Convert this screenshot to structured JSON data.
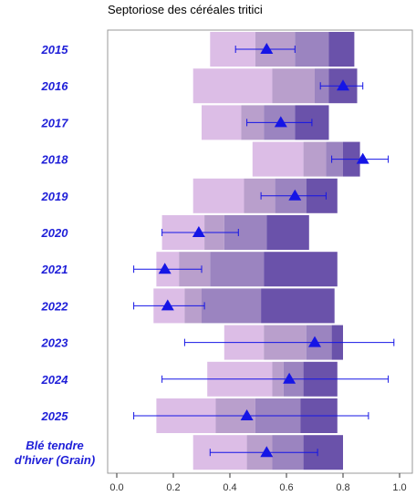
{
  "chart_data": {
    "type": "bar",
    "title": "Septoriose des céréales tritici",
    "xlim": [
      -0.03,
      1.04
    ],
    "xticks": [
      "0.0",
      "0.2",
      "0.4",
      "0.6",
      "0.8",
      "1.0"
    ],
    "categories": [
      "2015",
      "2016",
      "2017",
      "2018",
      "2019",
      "2020",
      "2021",
      "2022",
      "2023",
      "2024",
      "2025",
      "Blé tendre\nd'hiver (Grain)"
    ],
    "band_colors": [
      "#dcbde6",
      "#b99fcc",
      "#9b84c0",
      "#6a52aa"
    ],
    "marker_color": "#1515e6",
    "rows": [
      {
        "label": "2015",
        "bands": [
          0.33,
          0.49,
          0.63,
          0.75,
          0.84
        ],
        "point": 0.53,
        "err": [
          0.42,
          0.63
        ]
      },
      {
        "label": "2016",
        "bands": [
          0.27,
          0.55,
          0.7,
          0.75,
          0.85
        ],
        "point": 0.8,
        "err": [
          0.72,
          0.87
        ]
      },
      {
        "label": "2017",
        "bands": [
          0.3,
          0.44,
          0.52,
          0.63,
          0.75
        ],
        "point": 0.58,
        "err": [
          0.46,
          0.69
        ]
      },
      {
        "label": "2018",
        "bands": [
          0.48,
          0.66,
          0.74,
          0.8,
          0.86
        ],
        "point": 0.87,
        "err": [
          0.76,
          0.96
        ]
      },
      {
        "label": "2019",
        "bands": [
          0.27,
          0.45,
          0.56,
          0.67,
          0.78
        ],
        "point": 0.63,
        "err": [
          0.51,
          0.74
        ]
      },
      {
        "label": "2020",
        "bands": [
          0.16,
          0.31,
          0.38,
          0.53,
          0.68
        ],
        "point": 0.29,
        "err": [
          0.16,
          0.43
        ]
      },
      {
        "label": "2021",
        "bands": [
          0.14,
          0.22,
          0.33,
          0.52,
          0.78
        ],
        "point": 0.17,
        "err": [
          0.06,
          0.3
        ]
      },
      {
        "label": "2022",
        "bands": [
          0.13,
          0.24,
          0.3,
          0.51,
          0.77
        ],
        "point": 0.18,
        "err": [
          0.06,
          0.31
        ]
      },
      {
        "label": "2023",
        "bands": [
          0.38,
          0.52,
          0.67,
          0.76,
          0.8
        ],
        "point": 0.7,
        "err": [
          0.24,
          0.98
        ]
      },
      {
        "label": "2024",
        "bands": [
          0.32,
          0.55,
          0.59,
          0.66,
          0.78
        ],
        "point": 0.61,
        "err": [
          0.16,
          0.96
        ]
      },
      {
        "label": "2025",
        "bands": [
          0.14,
          0.35,
          0.49,
          0.65,
          0.78
        ],
        "point": 0.46,
        "err": [
          0.06,
          0.89
        ]
      },
      {
        "label": "Blé tendre\nd'hiver (Grain)",
        "bands": [
          0.27,
          0.46,
          0.55,
          0.66,
          0.8
        ],
        "point": 0.53,
        "err": [
          0.33,
          0.71
        ]
      }
    ]
  }
}
